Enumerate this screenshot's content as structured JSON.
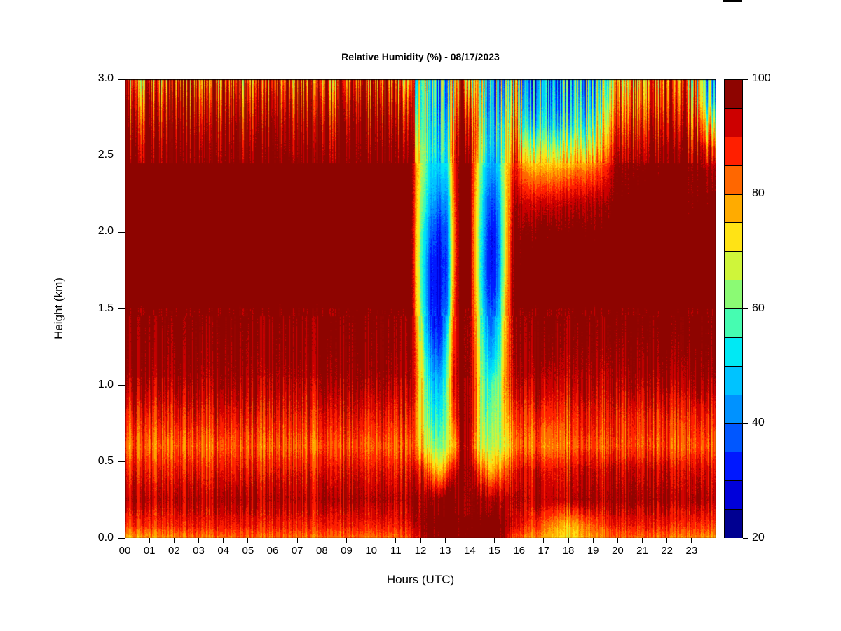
{
  "figure": {
    "background_color": "#ffffff",
    "artifact_color": "#000000"
  },
  "chart_data": {
    "type": "heatmap",
    "title": "Relative Humidity (%) - 08/17/2023",
    "xlabel": "Hours (UTC)",
    "ylabel": "Height (km)",
    "xlim": [
      0,
      24
    ],
    "ylim": [
      0,
      3
    ],
    "grid_on": false,
    "x_ticks": [
      "00",
      "01",
      "02",
      "03",
      "04",
      "05",
      "06",
      "07",
      "08",
      "09",
      "10",
      "11",
      "12",
      "13",
      "14",
      "15",
      "16",
      "17",
      "18",
      "19",
      "20",
      "21",
      "22",
      "23"
    ],
    "y_ticks": [
      "0.0",
      "0.5",
      "1.0",
      "1.5",
      "2.0",
      "2.5",
      "3.0"
    ],
    "legend_position": "right",
    "colorbar": {
      "min": 20,
      "max": 100,
      "level_step": 5,
      "tick_values": [
        100,
        80,
        60,
        40,
        20
      ],
      "tick_labels": [
        "100",
        "80",
        "60",
        "40",
        "20"
      ],
      "colors": [
        "#000091",
        "#0000DA",
        "#0018FF",
        "#0057FF",
        "#0092FF",
        "#00C3FF",
        "#00E9F4",
        "#46FCB1",
        "#8BFA74",
        "#CFF53A",
        "#FFE315",
        "#FFAB00",
        "#FF6700",
        "#FF1F00",
        "#CD0000",
        "#8E0400"
      ]
    },
    "grid": {
      "times": [
        0,
        3,
        6,
        9,
        11,
        11.6,
        12,
        12.4,
        12.8,
        13.1,
        13.35,
        13.6,
        14,
        14.3,
        14.6,
        14.9,
        15.15,
        15.45,
        15.8,
        16.3,
        17,
        18,
        18.7,
        19.4,
        20,
        21.5,
        23,
        23.6,
        24
      ],
      "heights": [
        3,
        2.85,
        2.7,
        2.55,
        2.4,
        2.2,
        2,
        1.8,
        1.6,
        1.4,
        1.2,
        1,
        0.8,
        0.6,
        0.45,
        0.25,
        0.08,
        0
      ],
      "values": [
        [
          87,
          88,
          87,
          88,
          87,
          78,
          60,
          52,
          50,
          55,
          70,
          85,
          80,
          65,
          52,
          50,
          52,
          60,
          70,
          45,
          45,
          44,
          46,
          55,
          80,
          85,
          82,
          55,
          50
        ],
        [
          93,
          94,
          93,
          94,
          93,
          88,
          58,
          50,
          48,
          52,
          75,
          92,
          90,
          70,
          50,
          48,
          52,
          62,
          75,
          48,
          47,
          46,
          48,
          60,
          85,
          88,
          87,
          60,
          55
        ],
        [
          97,
          98,
          97,
          98,
          97,
          94,
          60,
          50,
          50,
          55,
          80,
          98,
          97,
          75,
          52,
          50,
          55,
          68,
          80,
          55,
          52,
          52,
          55,
          68,
          90,
          93,
          92,
          75,
          72
        ],
        [
          99,
          100,
          99,
          100,
          99,
          98,
          65,
          52,
          50,
          58,
          85,
          100,
          100,
          75,
          55,
          48,
          52,
          70,
          85,
          68,
          65,
          66,
          68,
          76,
          95,
          97,
          97,
          88,
          88
        ],
        [
          100,
          100,
          100,
          100,
          100,
          100,
          68,
          50,
          48,
          52,
          85,
          100,
          100,
          72,
          50,
          42,
          48,
          72,
          90,
          80,
          78,
          80,
          82,
          86,
          98,
          99,
          99,
          96,
          96
        ],
        [
          100,
          100,
          100,
          100,
          100,
          100,
          65,
          45,
          40,
          45,
          82,
          100,
          100,
          70,
          45,
          35,
          42,
          72,
          95,
          92,
          92,
          93,
          94,
          95,
          99,
          100,
          99,
          99,
          99
        ],
        [
          100,
          100,
          100,
          100,
          100,
          100,
          62,
          38,
          32,
          40,
          80,
          100,
          100,
          68,
          42,
          30,
          38,
          72,
          98,
          98,
          99,
          99,
          99,
          99,
          100,
          100,
          100,
          100,
          100
        ],
        [
          100,
          100,
          100,
          100,
          100,
          100,
          60,
          33,
          30,
          38,
          80,
          100,
          100,
          68,
          40,
          30,
          38,
          72,
          99,
          100,
          100,
          100,
          100,
          100,
          100,
          100,
          100,
          100,
          100
        ],
        [
          100,
          100,
          100,
          100,
          100,
          100,
          62,
          32,
          30,
          40,
          82,
          100,
          100,
          70,
          42,
          32,
          42,
          75,
          100,
          100,
          100,
          100,
          100,
          100,
          100,
          100,
          100,
          100,
          100
        ],
        [
          99,
          99,
          98,
          99,
          99,
          99,
          65,
          35,
          32,
          48,
          85,
          100,
          100,
          72,
          48,
          38,
          48,
          78,
          98,
          99,
          99,
          98,
          98,
          98,
          99,
          100,
          100,
          100,
          100
        ],
        [
          98,
          97,
          97,
          98,
          98,
          98,
          70,
          42,
          38,
          55,
          88,
          100,
          100,
          75,
          52,
          45,
          52,
          80,
          97,
          97,
          97,
          96,
          96,
          96,
          97,
          98,
          98,
          99,
          99
        ],
        [
          96,
          95,
          95,
          96,
          96,
          96,
          72,
          50,
          48,
          60,
          90,
          100,
          100,
          78,
          55,
          58,
          58,
          82,
          95,
          95,
          94,
          93,
          93,
          93,
          94,
          95,
          95,
          96,
          96
        ],
        [
          89,
          89,
          89,
          90,
          90,
          90,
          72,
          55,
          55,
          60,
          85,
          100,
          100,
          75,
          58,
          62,
          60,
          78,
          88,
          88,
          87,
          87,
          88,
          88,
          88,
          88,
          88,
          89,
          89
        ],
        [
          83,
          82,
          83,
          84,
          84,
          84,
          75,
          65,
          62,
          65,
          75,
          95,
          98,
          72,
          65,
          66,
          65,
          72,
          82,
          84,
          80,
          82,
          83,
          83,
          84,
          84,
          83,
          84,
          84
        ],
        [
          89,
          88,
          89,
          90,
          90,
          90,
          88,
          80,
          75,
          80,
          90,
          100,
          100,
          85,
          80,
          75,
          78,
          85,
          90,
          92,
          90,
          90,
          91,
          91,
          92,
          92,
          91,
          91,
          91
        ],
        [
          95,
          94,
          95,
          95,
          96,
          96,
          97,
          98,
          99,
          100,
          100,
          100,
          100,
          98,
          97,
          95,
          95,
          97,
          96,
          95,
          94,
          94,
          95,
          95,
          96,
          96,
          95,
          95,
          95
        ],
        [
          86,
          88,
          88,
          88,
          89,
          90,
          96,
          99,
          100,
          100,
          100,
          100,
          100,
          100,
          100,
          100,
          100,
          98,
          92,
          88,
          83,
          75,
          80,
          85,
          88,
          88,
          87,
          86,
          86
        ],
        [
          77,
          81,
          82,
          82,
          83,
          85,
          93,
          98,
          99,
          100,
          100,
          100,
          100,
          100,
          100,
          100,
          100,
          95,
          85,
          82,
          78,
          72,
          76,
          80,
          82,
          82,
          80,
          79,
          79
        ]
      ]
    }
  }
}
